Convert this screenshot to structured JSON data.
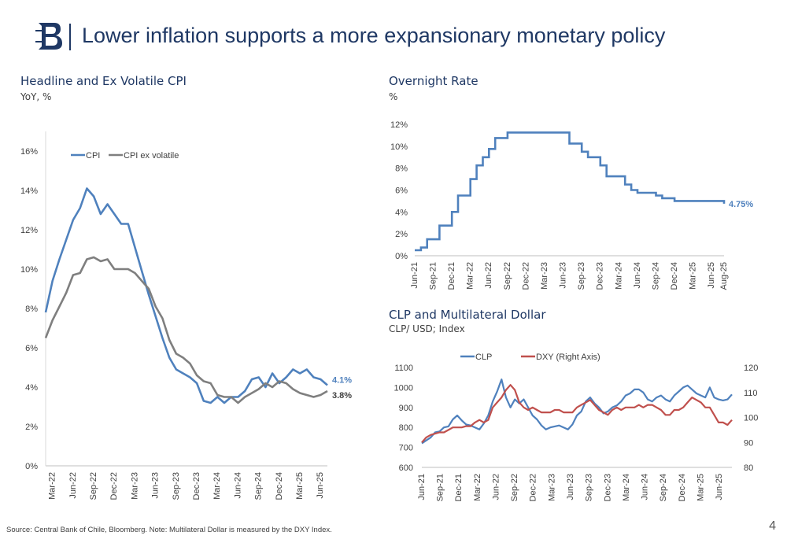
{
  "slide": {
    "title": "Lower inflation supports a more expansionary monetary policy",
    "footnote": "Source: Central Bank of Chile, Bloomberg. Note: Multilateral Dollar is measured by the DXY Index.",
    "page_number": "4"
  },
  "colors": {
    "blue": "#4f81bd",
    "gray": "#7f7f7f",
    "red": "#c0504d",
    "title": "#1f3864"
  },
  "chart_data": [
    {
      "id": "cpi",
      "type": "line",
      "title": "Headline and Ex Volatile CPI",
      "subtitle": "YoY, %",
      "x_ticks": [
        "Mar-22",
        "Jun-22",
        "Sep-22",
        "Dec-22",
        "Mar-23",
        "Jun-23",
        "Sep-23",
        "Dec-23",
        "Mar-24",
        "Jun-24",
        "Sep-24",
        "Dec-24",
        "Mar-25",
        "Jun-25"
      ],
      "x_start": "Feb-22",
      "y_ticks": [
        "0%",
        "2%",
        "4%",
        "6%",
        "8%",
        "10%",
        "12%",
        "14%",
        "16%"
      ],
      "ylim": [
        0,
        17
      ],
      "legend_position": "top-left",
      "series": [
        {
          "name": "CPI",
          "color": "#4f81bd",
          "end_label": "4.1%",
          "values": [
            7.8,
            9.4,
            10.5,
            11.5,
            12.5,
            13.1,
            14.1,
            13.7,
            12.8,
            13.3,
            12.8,
            12.3,
            12.3,
            11.1,
            9.9,
            8.7,
            7.6,
            6.5,
            5.5,
            4.9,
            4.7,
            4.5,
            4.2,
            3.3,
            3.2,
            3.5,
            3.2,
            3.5,
            3.5,
            3.8,
            4.4,
            4.5,
            4.0,
            4.7,
            4.2,
            4.5,
            4.9,
            4.7,
            4.9,
            4.5,
            4.4,
            4.1
          ]
        },
        {
          "name": "CPI ex volatile",
          "color": "#7f7f7f",
          "end_label": "3.8%",
          "values": [
            6.5,
            7.4,
            8.1,
            8.8,
            9.7,
            9.8,
            10.5,
            10.6,
            10.4,
            10.5,
            10.0,
            10.0,
            10.0,
            9.8,
            9.4,
            9.0,
            8.1,
            7.5,
            6.4,
            5.7,
            5.5,
            5.2,
            4.6,
            4.3,
            4.2,
            3.6,
            3.5,
            3.5,
            3.2,
            3.5,
            3.7,
            3.9,
            4.2,
            4.0,
            4.3,
            4.2,
            3.9,
            3.7,
            3.6,
            3.5,
            3.6,
            3.8
          ]
        }
      ]
    },
    {
      "id": "rate",
      "type": "line",
      "title": "Overnight Rate",
      "subtitle": "%",
      "x_ticks": [
        "Jun-21",
        "Sep-21",
        "Dec-21",
        "Mar-22",
        "Jun-22",
        "Sep-22",
        "Dec-22",
        "Mar-23",
        "Jun-23",
        "Sep-23",
        "Dec-23",
        "Mar-24",
        "Jun-24",
        "Sep-24",
        "Dec-24",
        "Mar-25",
        "Jun-25",
        "Aug-25"
      ],
      "y_ticks": [
        "0%",
        "2%",
        "4%",
        "6%",
        "8%",
        "10%",
        "12%"
      ],
      "ylim": [
        0,
        12
      ],
      "series": [
        {
          "name": "Overnight Rate",
          "color": "#4f81bd",
          "end_label": "4.75%",
          "steps": [
            [
              "Jun-21",
              0.5
            ],
            [
              "Jul-21",
              0.75
            ],
            [
              "Aug-21",
              1.5
            ],
            [
              "Oct-21",
              2.75
            ],
            [
              "Dec-21",
              4.0
            ],
            [
              "Jan-22",
              5.5
            ],
            [
              "Mar-22",
              7.0
            ],
            [
              "Apr-22",
              8.25
            ],
            [
              "May-22",
              9.0
            ],
            [
              "Jun-22",
              9.75
            ],
            [
              "Jul-22",
              10.75
            ],
            [
              "Sep-22",
              11.25
            ],
            [
              "Jul-23",
              10.25
            ],
            [
              "Sep-23",
              9.5
            ],
            [
              "Oct-23",
              9.0
            ],
            [
              "Dec-23",
              8.25
            ],
            [
              "Jan-24",
              7.25
            ],
            [
              "Apr-24",
              6.5
            ],
            [
              "May-24",
              6.0
            ],
            [
              "Jun-24",
              5.75
            ],
            [
              "Sep-24",
              5.5
            ],
            [
              "Oct-24",
              5.25
            ],
            [
              "Dec-24",
              5.0
            ],
            [
              "Aug-25",
              4.75
            ]
          ]
        }
      ]
    },
    {
      "id": "clp",
      "type": "line",
      "title": "CLP and Multilateral Dollar",
      "subtitle": "CLP/ USD; Index",
      "x_ticks": [
        "Jun-21",
        "Sep-21",
        "Dec-21",
        "Mar-22",
        "Jun-22",
        "Sep-22",
        "Dec-22",
        "Mar-23",
        "Jun-23",
        "Sep-23",
        "Dec-23",
        "Mar-24",
        "Jun-24",
        "Sep-24",
        "Dec-24",
        "Mar-25",
        "Jun-25"
      ],
      "y_ticks_left": [
        "600",
        "700",
        "800",
        "900",
        "1000",
        "1100"
      ],
      "y_ticks_right": [
        "80",
        "90",
        "100",
        "110",
        "120"
      ],
      "ylim_left": [
        600,
        1100
      ],
      "ylim_right": [
        80,
        120
      ],
      "legend_position": "top-center",
      "series": [
        {
          "name": "CLP",
          "color": "#4f81bd",
          "axis": "left",
          "values": [
            720,
            735,
            750,
            775,
            780,
            800,
            805,
            840,
            860,
            835,
            815,
            810,
            800,
            790,
            820,
            860,
            930,
            980,
            1040,
            950,
            900,
            940,
            920,
            940,
            900,
            860,
            840,
            810,
            790,
            800,
            805,
            810,
            800,
            790,
            815,
            860,
            880,
            930,
            950,
            920,
            900,
            870,
            880,
            900,
            910,
            930,
            960,
            970,
            990,
            990,
            975,
            940,
            930,
            950,
            960,
            940,
            930,
            960,
            980,
            1000,
            1010,
            990,
            970,
            960,
            950,
            1000,
            950,
            940,
            935,
            940,
            965
          ]
        },
        {
          "name": "DXY (Right Axis)",
          "color": "#c0504d",
          "axis": "right",
          "values": [
            90,
            92,
            93,
            93.5,
            94,
            94,
            95,
            96,
            96,
            96,
            96.5,
            96.5,
            98,
            99,
            98,
            99,
            104,
            106,
            108,
            111,
            113,
            111,
            106,
            104,
            103,
            104,
            103,
            102,
            102,
            102,
            103,
            103,
            102,
            102,
            102,
            104,
            105,
            106,
            107,
            105,
            103,
            102,
            101,
            103,
            104,
            103,
            104,
            104,
            104,
            105,
            104,
            105,
            105,
            104,
            103,
            101,
            101,
            103,
            103,
            104,
            106,
            108,
            107,
            106,
            104,
            104,
            101,
            98,
            98,
            97,
            99
          ]
        }
      ]
    }
  ]
}
